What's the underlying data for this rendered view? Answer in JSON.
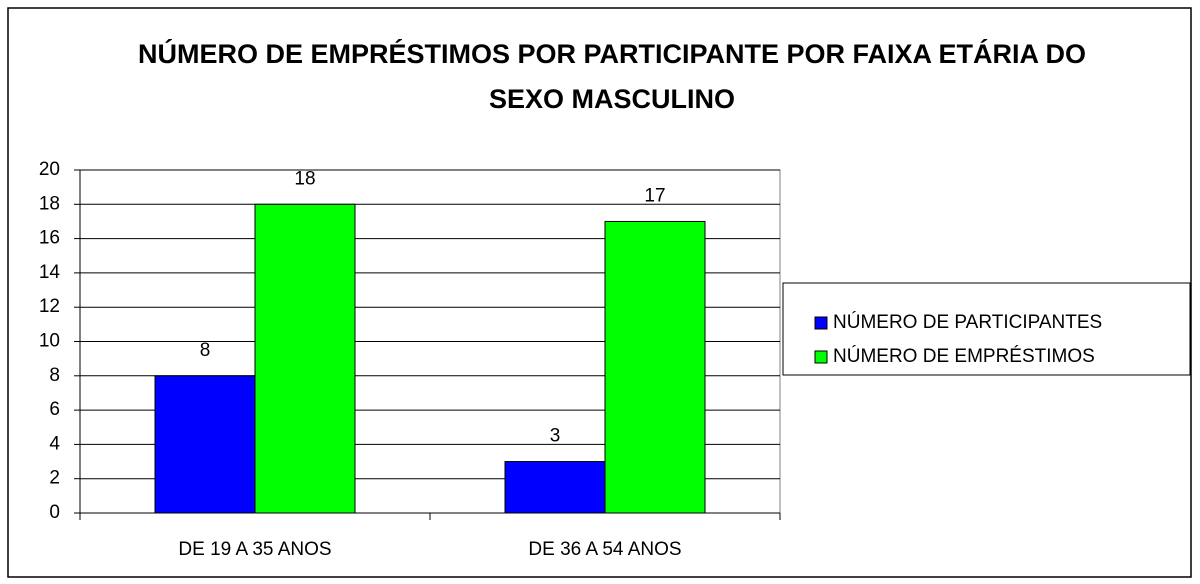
{
  "chart_data": {
    "type": "bar",
    "title": "NÚMERO DE EMPRÉSTIMOS POR PARTICIPANTE POR FAIXA ETÁRIA DO SEXO MASCULINO",
    "categories": [
      "DE 19 A 35 ANOS",
      "DE 36 A 54 ANOS"
    ],
    "series": [
      {
        "name": "NÚMERO DE PARTICIPANTES",
        "color": "#0000ff",
        "values": [
          8,
          3
        ]
      },
      {
        "name": "NÚMERO DE EMPRÉSTIMOS",
        "color": "#00ff00",
        "values": [
          18,
          17
        ]
      }
    ],
    "ylim": [
      0,
      20
    ],
    "yticks": [
      0,
      2,
      4,
      6,
      8,
      10,
      12,
      14,
      16,
      18,
      20
    ],
    "grid": true,
    "legend": "right"
  }
}
